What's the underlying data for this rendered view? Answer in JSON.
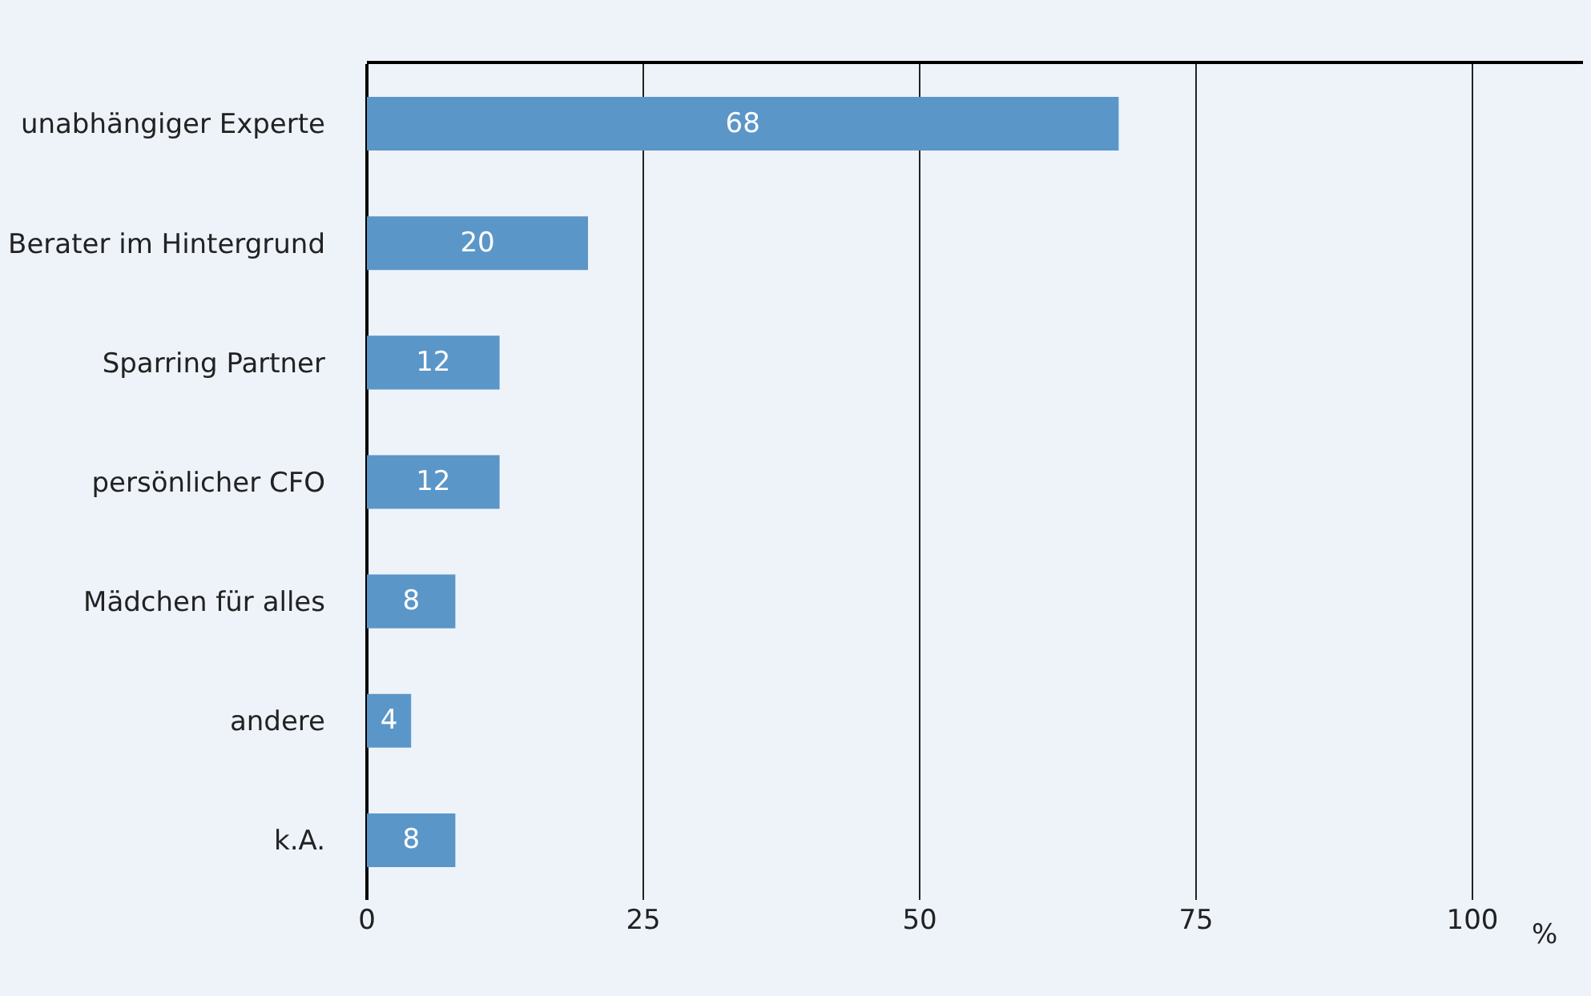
{
  "chart_data": {
    "type": "bar",
    "orientation": "horizontal",
    "categories": [
      "unabhängiger Experte",
      "Berater im Hintergrund",
      "Sparring Partner",
      "persönlicher CFO",
      "Mädchen für alles",
      "andere",
      "k.A."
    ],
    "values": [
      68,
      20,
      12,
      12,
      8,
      4,
      8
    ],
    "color": "#5b96c8",
    "xlim": [
      0,
      110
    ],
    "xticks": [
      0,
      25,
      50,
      75,
      100
    ],
    "xlabel": "%",
    "grid": "x",
    "data_labels": true
  }
}
